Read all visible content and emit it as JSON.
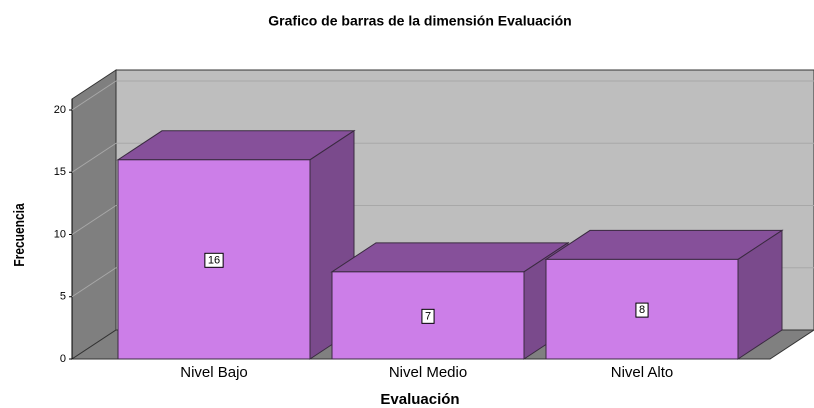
{
  "chart_data": {
    "type": "bar3d",
    "title": "Grafico de barras de la dimensión Evaluación",
    "x_label": "Evaluación",
    "y_label": "Frecuencia",
    "categories": [
      "Nivel Bajo",
      "Nivel Medio",
      "Nivel Alto"
    ],
    "values": [
      16,
      7,
      8
    ],
    "color": "#cc7ee8",
    "ylim": [
      0,
      20
    ],
    "yticks": [
      0,
      5,
      10,
      15,
      20
    ],
    "grid": true
  }
}
